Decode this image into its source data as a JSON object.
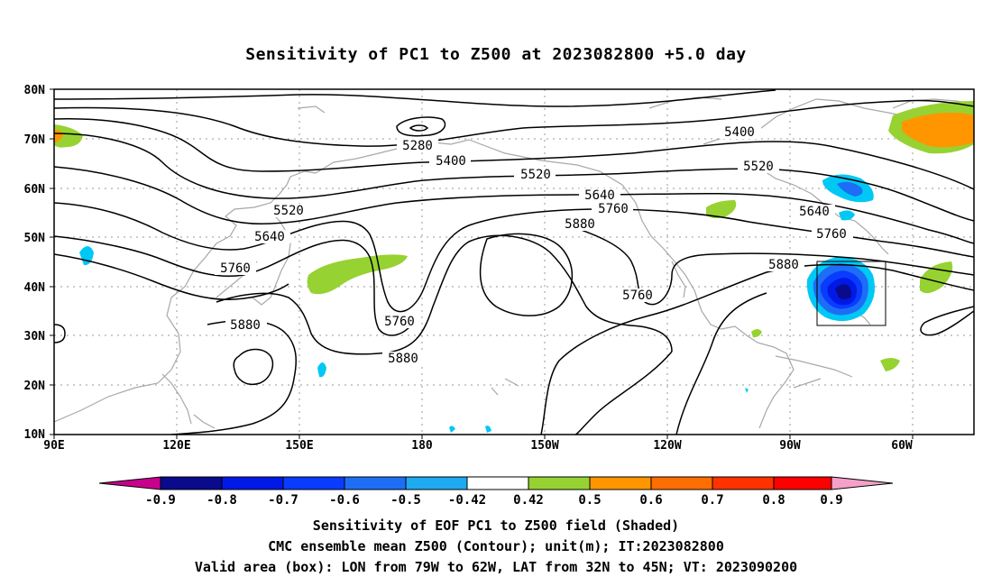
{
  "title": "Sensitivity of PC1 to Z500 at 2023082800 +5.0 day",
  "lat_labels": [
    "80N",
    "70N",
    "60N",
    "50N",
    "40N",
    "30N",
    "20N",
    "10N"
  ],
  "lon_labels": [
    "90E",
    "120E",
    "150E",
    "180",
    "150W",
    "120W",
    "90W",
    "60W"
  ],
  "contour_labels": [
    "5280",
    "5400",
    "5520",
    "5640",
    "5760",
    "5880",
    "5400",
    "5520",
    "5640",
    "5760",
    "5880",
    "5520",
    "5640",
    "5760",
    "5880",
    "5760",
    "5880",
    "5760"
  ],
  "colorbar": {
    "labels": [
      "-0.9",
      "-0.8",
      "-0.7",
      "-0.6",
      "-0.5",
      "-0.42",
      "0.42",
      "0.5",
      "0.6",
      "0.7",
      "0.8",
      "0.9"
    ],
    "colors": [
      "#c8008c",
      "#0a0a8c",
      "#0019e6",
      "#0a3cff",
      "#1e6ef5",
      "#1eaaf0",
      "#00c8f5",
      "#ffffff",
      "#96d232",
      "#ff9600",
      "#ff6e00",
      "#ff3200",
      "#ff0000",
      "#f5a0c8"
    ]
  },
  "captions": [
    "Sensitivity of EOF PC1 to Z500 field (Shaded)",
    "CMC ensemble mean Z500 (Contour); unit(m); IT:2023082800",
    "Valid area (box): LON from 79W to 62W, LAT from 32N to 45N; VT: 2023090200"
  ],
  "valid_area": {
    "lon_min": -79,
    "lon_max": -62,
    "lat_min": 32,
    "lat_max": 45
  }
}
